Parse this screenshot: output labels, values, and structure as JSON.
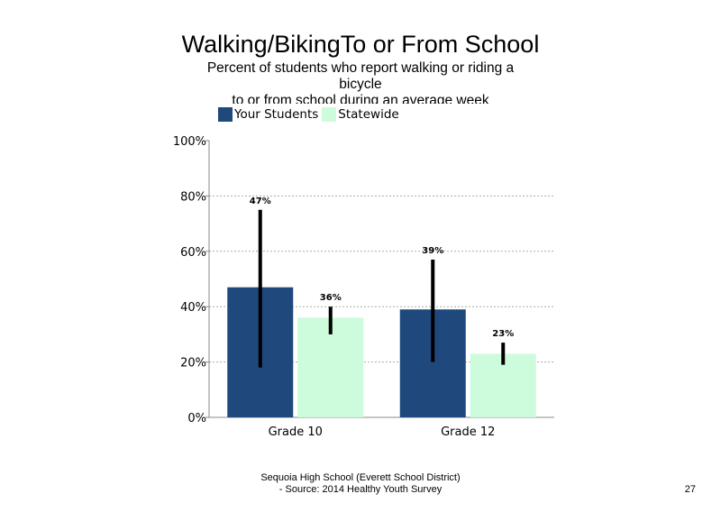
{
  "chart_data": {
    "type": "bar",
    "title": "Walking/BikingTo or From School",
    "subtitle_lines": [
      "Percent of students who report walking or riding a",
      "bicycle",
      "to or from school during an average week"
    ],
    "categories": [
      "Grade 10",
      "Grade 12"
    ],
    "series": [
      {
        "name": "Your Students",
        "color": "#1f497d",
        "values": [
          47,
          39
        ],
        "error_low": [
          18,
          20
        ],
        "error_high": [
          75,
          57
        ],
        "labels": [
          "47%",
          "39%"
        ]
      },
      {
        "name": "Statewide",
        "color": "#ccfcdc",
        "values": [
          36,
          23
        ],
        "error_low": [
          30,
          19
        ],
        "error_high": [
          40,
          27
        ],
        "labels": [
          "36%",
          "23%"
        ]
      }
    ],
    "ylim": [
      0,
      100
    ],
    "yticks": [
      0,
      20,
      40,
      60,
      80,
      100
    ],
    "ytick_labels": [
      "0%",
      "20%",
      "40%",
      "60%",
      "80%",
      "100%"
    ],
    "grid": "horizontal dotted",
    "legend_position": "top-left"
  },
  "footer": {
    "line1": "Sequoia High School (Everett School District)",
    "line2": "- Source: 2014 Healthy Youth Survey"
  },
  "page_number": "27"
}
